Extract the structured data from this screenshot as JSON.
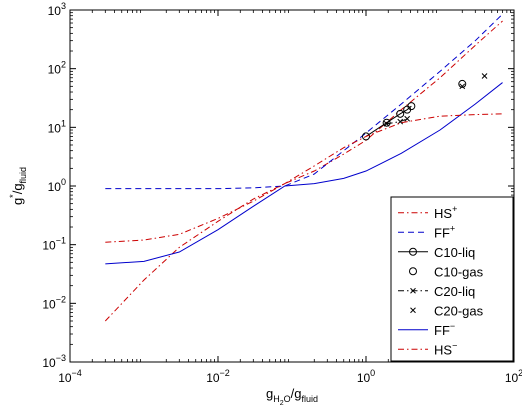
{
  "chart_data": {
    "type": "line",
    "xscale": "log",
    "yscale": "log",
    "xlim": [
      0.0001,
      100
    ],
    "ylim": [
      0.001,
      1000
    ],
    "grid": false,
    "legend_position": "bottom-right",
    "xticks": [
      {
        "base": "10",
        "exp": "−4",
        "value": 0.0001
      },
      {
        "base": "10",
        "exp": "−2",
        "value": 0.01
      },
      {
        "base": "10",
        "exp": "0",
        "value": 1
      },
      {
        "base": "10",
        "exp": "2",
        "value": 100
      }
    ],
    "yticks": [
      {
        "base": "10",
        "exp": "−3",
        "value": 0.001
      },
      {
        "base": "10",
        "exp": "−2",
        "value": 0.01
      },
      {
        "base": "10",
        "exp": "−1",
        "value": 0.1
      },
      {
        "base": "10",
        "exp": "0",
        "value": 1
      },
      {
        "base": "10",
        "exp": "1",
        "value": 10
      },
      {
        "base": "10",
        "exp": "2",
        "value": 100
      },
      {
        "base": "10",
        "exp": "3",
        "value": 1000
      }
    ],
    "xlabel": {
      "main": "g",
      "sub1": "H",
      "sub2": "2",
      "sub3": "O",
      "sep": "/g",
      "sub4": "fluid"
    },
    "ylabel": {
      "main": "g",
      "sup": "*",
      "sep": "/g",
      "sub": "fluid"
    },
    "series": [
      {
        "name": "HS",
        "name_sup": "+",
        "color": "#cc0000",
        "style": "dashdot",
        "marker": "none",
        "x": [
          0.0003,
          0.001,
          0.003,
          0.01,
          0.03,
          0.08,
          0.2,
          0.5,
          1,
          3,
          10,
          30,
          70
        ],
        "y": [
          0.005,
          0.025,
          0.09,
          0.25,
          0.6,
          1.1,
          1.8,
          3.5,
          6,
          20,
          70,
          250,
          650
        ]
      },
      {
        "name": "FF",
        "name_sup": "+",
        "color": "#0000cc",
        "style": "dashed",
        "marker": "none",
        "x": [
          0.0003,
          0.001,
          0.003,
          0.01,
          0.03,
          0.08,
          0.2,
          0.5,
          1,
          3,
          10,
          30,
          70
        ],
        "y": [
          0.9,
          0.9,
          0.9,
          0.9,
          0.93,
          1.0,
          1.6,
          4,
          8,
          25,
          90,
          300,
          850
        ]
      },
      {
        "name": "C10-liq",
        "color": "#000000",
        "style": "solid",
        "marker": "circle",
        "x": [
          1.0,
          1.9,
          2.9,
          3.6,
          4.1
        ],
        "y": [
          7,
          12,
          17,
          20,
          23
        ]
      },
      {
        "name": "C10-gas",
        "color": "#000000",
        "style": "none",
        "marker": "circle",
        "x": [
          20
        ],
        "y": [
          55
        ]
      },
      {
        "name": "C20-liq",
        "color": "#000000",
        "style": "dashdot",
        "marker": "x",
        "x": [
          1.9,
          2.9,
          3.6
        ],
        "y": [
          11.5,
          12.5,
          14
        ]
      },
      {
        "name": "C20-gas",
        "color": "#000000",
        "style": "none",
        "marker": "x",
        "x": [
          20,
          40
        ],
        "y": [
          50,
          75
        ]
      },
      {
        "name": "FF",
        "name_sup": "−",
        "color": "#0000cc",
        "style": "solid",
        "marker": "none",
        "x": [
          0.0003,
          0.001,
          0.003,
          0.01,
          0.03,
          0.08,
          0.2,
          0.5,
          1,
          3,
          10,
          30,
          70
        ],
        "y": [
          0.047,
          0.052,
          0.075,
          0.18,
          0.45,
          1.0,
          1.1,
          1.35,
          1.8,
          3.6,
          9,
          25,
          58
        ]
      },
      {
        "name": "HS",
        "name_sup": "−",
        "color": "#cc0000",
        "style": "dashdot",
        "marker": "none",
        "x": [
          0.0003,
          0.001,
          0.003,
          0.01,
          0.03,
          0.08,
          0.2,
          0.5,
          1,
          3,
          10,
          30,
          70
        ],
        "y": [
          0.11,
          0.12,
          0.15,
          0.28,
          0.55,
          1.1,
          2.2,
          4.5,
          7,
          12,
          15.5,
          16.5,
          17
        ]
      }
    ]
  }
}
